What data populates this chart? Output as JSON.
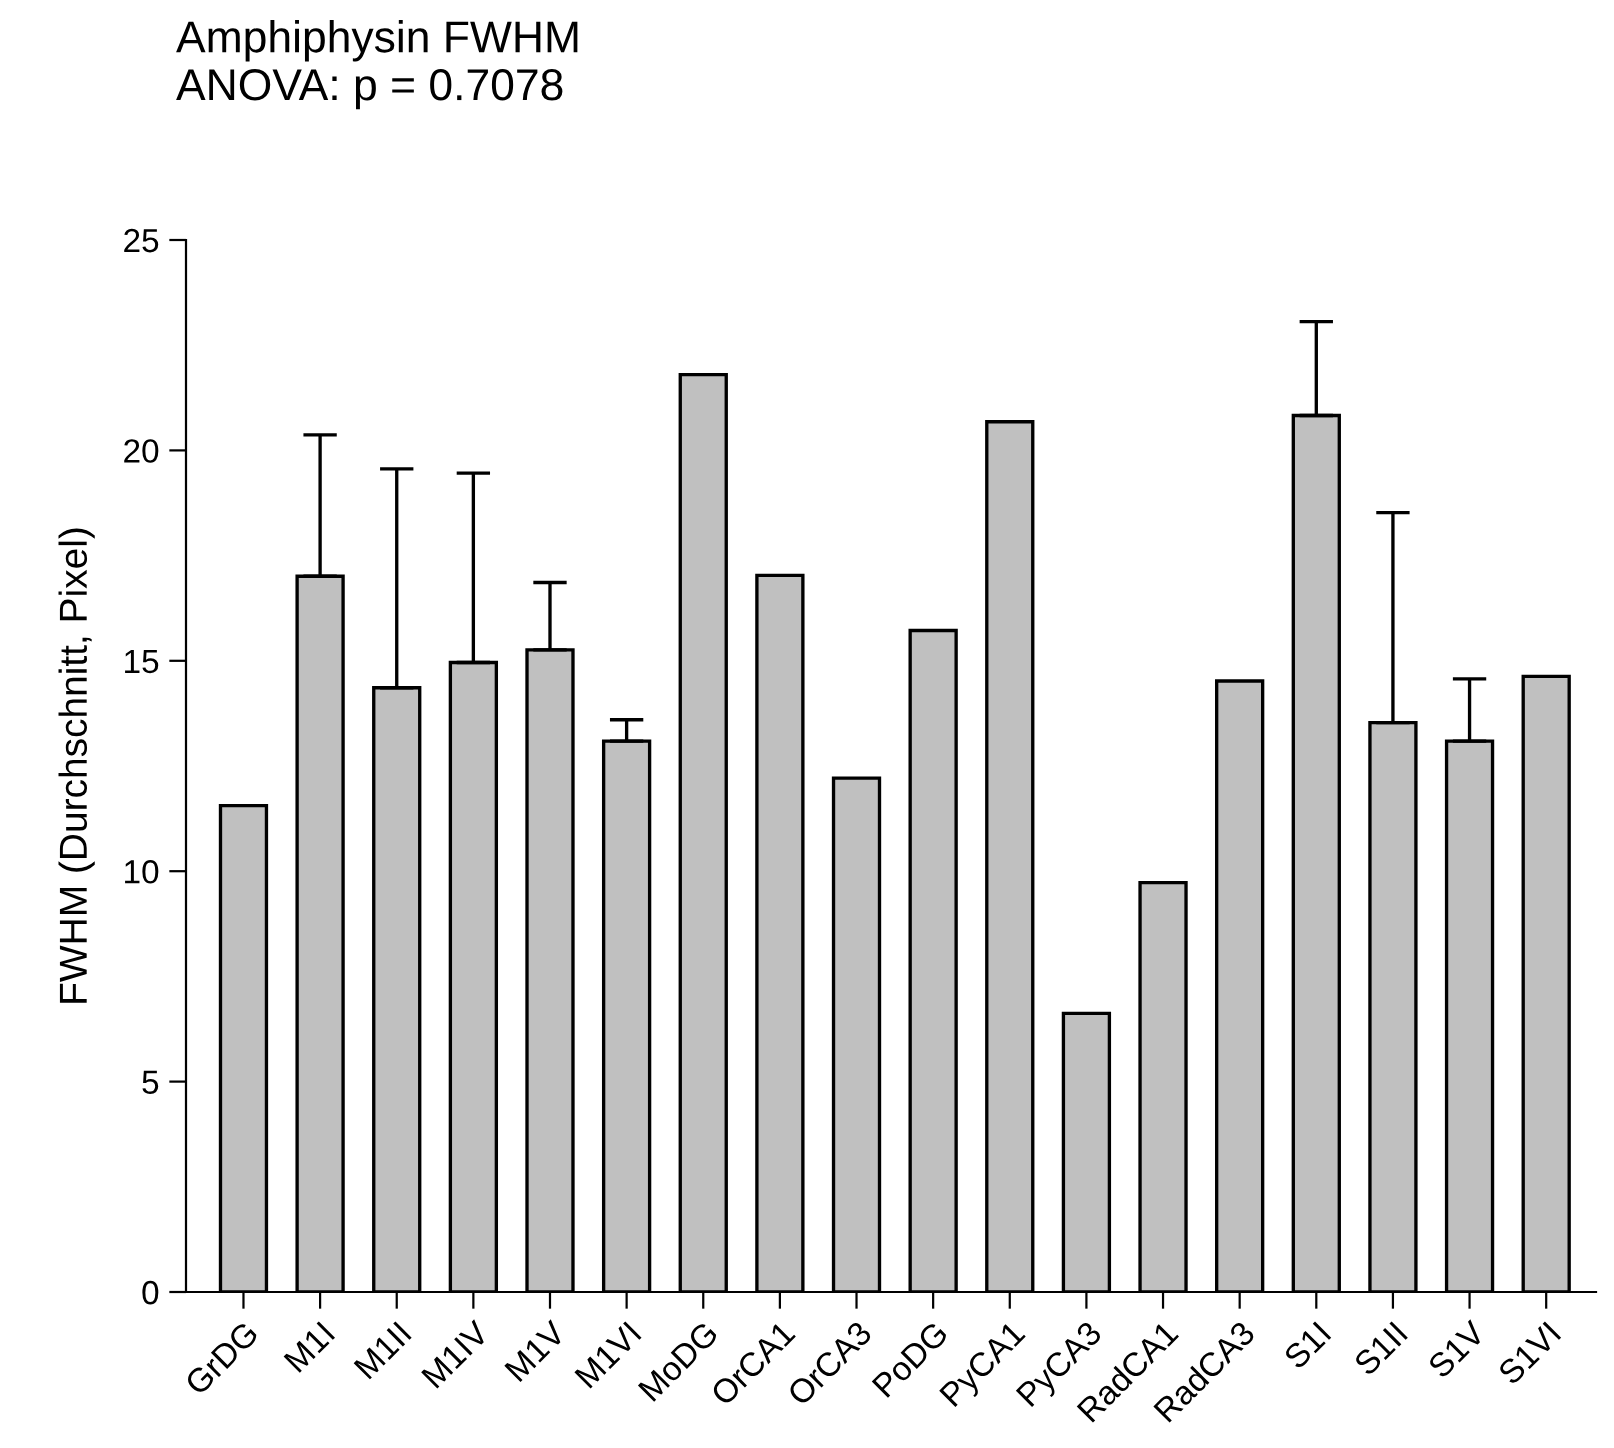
{
  "chart_data": {
    "type": "bar",
    "title": "Amphiphysin FWHM\nANOVA: p = 0.7078",
    "ylabel": "FWHM (Durchschnitt, Pixel)",
    "categories": [
      "GrDG",
      "M1I",
      "M1II",
      "M1IV",
      "M1V",
      "M1VI",
      "MoDG",
      "OrCA1",
      "OrCA3",
      "PoDG",
      "PyCA1",
      "PyCA3",
      "RadCA1",
      "RadCA3",
      "S1I",
      "S1II",
      "S1V",
      "S1VI"
    ],
    "values": [
      11.56,
      17.01,
      14.36,
      14.96,
      15.26,
      13.09,
      21.8,
      17.03,
      12.21,
      15.72,
      20.68,
      6.62,
      9.73,
      14.52,
      20.83,
      13.53,
      13.09,
      14.63
    ],
    "errors": [
      null,
      [
        17.01,
        20.37
      ],
      [
        14.36,
        19.56
      ],
      [
        14.96,
        19.46
      ],
      [
        15.26,
        16.86
      ],
      [
        13.09,
        13.6
      ],
      null,
      null,
      null,
      null,
      null,
      null,
      null,
      null,
      [
        20.83,
        23.06
      ],
      [
        13.53,
        18.52
      ],
      [
        13.09,
        14.57
      ],
      null
    ],
    "color": "#c0c0c0",
    "ylim": [
      0,
      25
    ],
    "yticks": [
      0,
      5,
      10,
      15,
      20,
      25
    ],
    "grid": false,
    "legend": false
  }
}
